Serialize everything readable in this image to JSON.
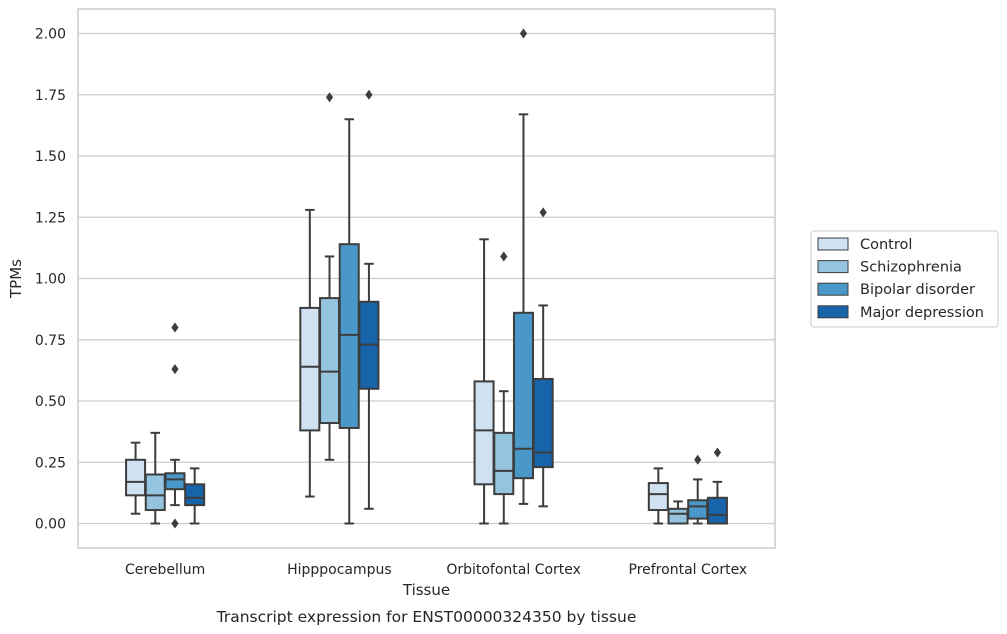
{
  "chart_data": {
    "type": "boxplot",
    "caption": "Transcript expression for ENST00000324350 by tissue",
    "xlabel": "Tissue",
    "ylabel": "TPMs",
    "ylim": [
      -0.1,
      2.1
    ],
    "yticks": [
      0.0,
      0.25,
      0.5,
      0.75,
      1.0,
      1.25,
      1.5,
      1.75,
      2.0
    ],
    "ytick_labels": [
      "0.00",
      "0.25",
      "0.50",
      "0.75",
      "1.00",
      "1.25",
      "1.50",
      "1.75",
      "2.00"
    ],
    "grid": true,
    "legend_position": "right",
    "categories": [
      "Cerebellum",
      "Hipppocampus",
      "Orbitofontal Cortex",
      "Prefrontal Cortex"
    ],
    "series": [
      {
        "name": "Control",
        "color": "#d0e1f2",
        "boxes": [
          {
            "whislo": 0.04,
            "q1": 0.115,
            "med": 0.17,
            "q3": 0.26,
            "whishi": 0.33,
            "fliers": []
          },
          {
            "whislo": 0.11,
            "q1": 0.38,
            "med": 0.64,
            "q3": 0.88,
            "whishi": 1.28,
            "fliers": []
          },
          {
            "whislo": 0.0,
            "q1": 0.16,
            "med": 0.38,
            "q3": 0.58,
            "whishi": 1.16,
            "fliers": []
          },
          {
            "whislo": 0.0,
            "q1": 0.055,
            "med": 0.12,
            "q3": 0.165,
            "whishi": 0.225,
            "fliers": []
          }
        ]
      },
      {
        "name": "Schizophrenia",
        "color": "#94c4df",
        "boxes": [
          {
            "whislo": 0.0,
            "q1": 0.055,
            "med": 0.115,
            "q3": 0.2,
            "whishi": 0.37,
            "fliers": []
          },
          {
            "whislo": 0.26,
            "q1": 0.41,
            "med": 0.62,
            "q3": 0.92,
            "whishi": 1.09,
            "fliers": [
              1.74
            ]
          },
          {
            "whislo": 0.0,
            "q1": 0.12,
            "med": 0.215,
            "q3": 0.37,
            "whishi": 0.54,
            "fliers": [
              1.09
            ]
          },
          {
            "whislo": 0.0,
            "q1": 0.0,
            "med": 0.04,
            "q3": 0.06,
            "whishi": 0.09,
            "fliers": []
          }
        ]
      },
      {
        "name": "Bipolar disorder",
        "color": "#4a98c9",
        "boxes": [
          {
            "whislo": 0.075,
            "q1": 0.14,
            "med": 0.18,
            "q3": 0.205,
            "whishi": 0.26,
            "fliers": [
              0.8,
              0.63,
              0.0
            ]
          },
          {
            "whislo": 0.0,
            "q1": 0.39,
            "med": 0.77,
            "q3": 1.14,
            "whishi": 1.65,
            "fliers": []
          },
          {
            "whislo": 0.08,
            "q1": 0.185,
            "med": 0.305,
            "q3": 0.86,
            "whishi": 1.67,
            "fliers": [
              2.0
            ]
          },
          {
            "whislo": 0.0,
            "q1": 0.02,
            "med": 0.07,
            "q3": 0.095,
            "whishi": 0.18,
            "fliers": [
              0.26
            ]
          }
        ]
      },
      {
        "name": "Major depression",
        "color": "#1764ab",
        "boxes": [
          {
            "whislo": 0.0,
            "q1": 0.075,
            "med": 0.105,
            "q3": 0.16,
            "whishi": 0.225,
            "fliers": []
          },
          {
            "whislo": 0.06,
            "q1": 0.55,
            "med": 0.73,
            "q3": 0.905,
            "whishi": 1.06,
            "fliers": [
              1.75
            ]
          },
          {
            "whislo": 0.07,
            "q1": 0.23,
            "med": 0.29,
            "q3": 0.59,
            "whishi": 0.89,
            "fliers": [
              1.27
            ]
          },
          {
            "whislo": 0.0,
            "q1": 0.0,
            "med": 0.035,
            "q3": 0.105,
            "whishi": 0.17,
            "fliers": [
              0.29
            ]
          }
        ]
      }
    ]
  }
}
